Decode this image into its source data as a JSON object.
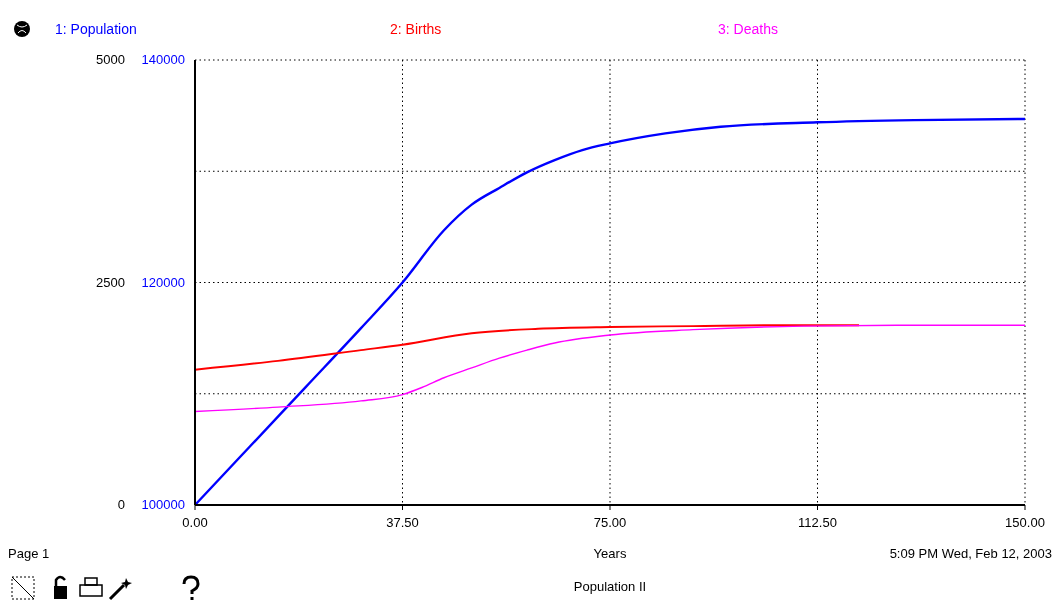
{
  "chart_data": {
    "type": "line",
    "title": "Population II",
    "xlabel": "Years",
    "legend": "top",
    "grid": true,
    "annotations": [
      "Page 1",
      "5:09 PM   Wed, Feb 12, 2003"
    ],
    "xlim": [
      0,
      150
    ],
    "xticks": [
      {
        "value": 0,
        "label": "0.00"
      },
      {
        "value": 37.5,
        "label": "37.50"
      },
      {
        "value": 75,
        "label": "75.00"
      },
      {
        "value": 112.5,
        "label": "112.50"
      },
      {
        "value": 150,
        "label": "150.00"
      }
    ],
    "ylim": [
      100000,
      140000
    ],
    "yticks": [
      100000,
      120000,
      140000
    ],
    "y2lim": [
      0,
      5000
    ],
    "y2ticks": [
      0,
      2500,
      5000
    ],
    "series": [
      {
        "name": "1: Population",
        "color": "#0000ff",
        "x": [
          0,
          10,
          20,
          30,
          37.5,
          45,
          50,
          55,
          60,
          65,
          70,
          75,
          85,
          95,
          112.5,
          130,
          150
        ],
        "values": [
          100000,
          105300,
          110600,
          115900,
          120000,
          124700,
          127000,
          128500,
          129900,
          131000,
          131900,
          132500,
          133400,
          134000,
          134400,
          134600,
          134700
        ]
      },
      {
        "name": "2: Births",
        "color": "#ff0000",
        "axis": "y2",
        "x": [
          0,
          15,
          30,
          37.5,
          50,
          62,
          75,
          90,
          105,
          120
        ],
        "values": [
          1520,
          1620,
          1740,
          1800,
          1930,
          1980,
          2000,
          2010,
          2020,
          2020
        ]
      },
      {
        "name": "3: Deaths",
        "color": "#ff00ff",
        "axis": "y2",
        "x": [
          0,
          15,
          30,
          37.5,
          41,
          45,
          50,
          55,
          60,
          65,
          75,
          90,
          110,
          130,
          150
        ],
        "values": [
          1050,
          1100,
          1170,
          1240,
          1320,
          1430,
          1540,
          1650,
          1740,
          1820,
          1910,
          1970,
          2010,
          2020,
          2020
        ]
      }
    ]
  }
}
